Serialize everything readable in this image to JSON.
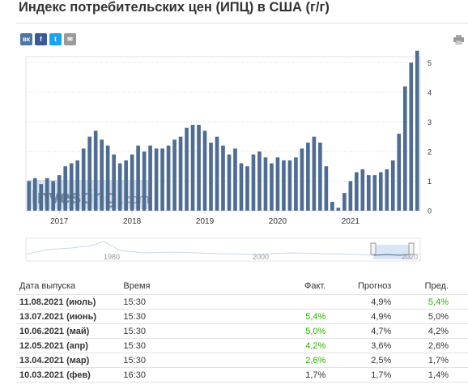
{
  "page": {
    "title": "Индекс потребительских цен (ИПЦ) в США (г/г)"
  },
  "social": {
    "vk_label": "вк",
    "fb_label": "f",
    "tw_label": "t",
    "mail_label": "✉"
  },
  "watermark": {
    "brand": "Investing",
    "suffix": ".com"
  },
  "colors": {
    "bar": "#4e6d93",
    "grid": "#d8d8d8",
    "navigator_line": "#9bb7d4",
    "highlight": "#2db200"
  },
  "chart_data": {
    "type": "bar",
    "title": "",
    "xlabel": "",
    "ylabel": "",
    "ylim": [
      0,
      5.2
    ],
    "y_ticks": [
      "0",
      "1",
      "2",
      "3",
      "4",
      "5"
    ],
    "x_ticks": [
      "2017",
      "2018",
      "2019",
      "2020",
      "2021"
    ],
    "grid": true,
    "series": [
      {
        "values": [
          1.0,
          1.1,
          0.9,
          1.1,
          1.0,
          1.2,
          1.5,
          1.6,
          1.7,
          2.1,
          2.5,
          2.7,
          2.4,
          2.2,
          1.9,
          1.6,
          1.7,
          1.9,
          2.2,
          2.0,
          2.2,
          2.1,
          2.1,
          2.2,
          2.4,
          2.5,
          2.8,
          2.9,
          2.9,
          2.7,
          2.3,
          2.5,
          2.2,
          1.9,
          2.1,
          1.6,
          1.5,
          1.9,
          2.0,
          1.8,
          1.6,
          1.8,
          1.7,
          1.7,
          1.8,
          2.1,
          2.3,
          2.5,
          2.3,
          1.5,
          0.3,
          0.1,
          0.6,
          1.0,
          1.3,
          1.4,
          1.2,
          1.2,
          1.3,
          1.4,
          1.7,
          2.6,
          4.2,
          5.0,
          5.4
        ]
      }
    ],
    "navigator": {
      "labels": [
        "1980",
        "2000",
        "2020"
      ]
    }
  },
  "table": {
    "headers": {
      "date": "Дата выпуска",
      "time": "Время",
      "actual": "Факт.",
      "forecast": "Прогноз",
      "previous": "Пред."
    },
    "rows": [
      {
        "date": "11.08.2021 (июль)",
        "time": "15:30",
        "actual": "",
        "forecast": "4,9%",
        "previous": "5,4%",
        "actual_green": false,
        "previous_green": true
      },
      {
        "date": "13.07.2021 (июнь)",
        "time": "15:30",
        "actual": "5,4%",
        "forecast": "4,9%",
        "previous": "5,0%",
        "actual_green": true,
        "previous_green": false
      },
      {
        "date": "10.06.2021 (май)",
        "time": "15:30",
        "actual": "5,0%",
        "forecast": "4,7%",
        "previous": "4,2%",
        "actual_green": true,
        "previous_green": false
      },
      {
        "date": "12.05.2021 (апр)",
        "time": "15:30",
        "actual": "4,2%",
        "forecast": "3,6%",
        "previous": "2,6%",
        "actual_green": true,
        "previous_green": false
      },
      {
        "date": "13.04.2021 (мар)",
        "time": "15:30",
        "actual": "2,6%",
        "forecast": "2,5%",
        "previous": "1,7%",
        "actual_green": true,
        "previous_green": false
      },
      {
        "date": "10.03.2021 (фев)",
        "time": "16:30",
        "actual": "1,7%",
        "forecast": "1,7%",
        "previous": "1,4%",
        "actual_green": false,
        "previous_green": false
      }
    ]
  }
}
